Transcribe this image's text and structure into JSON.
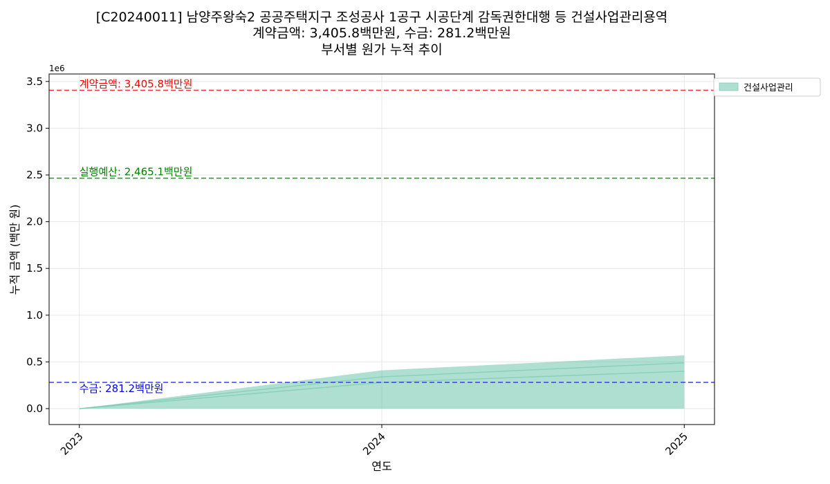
{
  "chart_data": {
    "type": "area",
    "title_lines": [
      "[C20240011] 남양주왕숙2 공공주택지구 조성공사 1공구 시공단계 감독권한대행 등 건설사업관리용역",
      "계약금액: 3,405.8백만원, 수금: 281.2백만원",
      "부서별 원가 누적 추이"
    ],
    "xlabel": "연도",
    "ylabel": "누적 금액 (백만 원)",
    "y_offset_label": "1e6",
    "x": [
      2023,
      2024,
      2025
    ],
    "x_tick_labels": [
      "2023",
      "2024",
      "2025"
    ],
    "xlim": [
      2022.9,
      2025.1
    ],
    "ylim": [
      -170000,
      3580000
    ],
    "y_ticks": [
      0,
      500000,
      1000000,
      1500000,
      2000000,
      2500000,
      3000000,
      3500000
    ],
    "y_tick_labels": [
      "0.0",
      "0.5",
      "1.0",
      "1.5",
      "2.0",
      "2.5",
      "3.0",
      "3.5"
    ],
    "grid": true,
    "legend_position": "outside-top-right",
    "series": [
      {
        "name": "건설사업관리",
        "color": "#66c2a5",
        "lower": [
          0,
          280000,
          400000
        ],
        "mid": [
          0,
          340000,
          490000
        ],
        "upper": [
          0,
          410000,
          570000
        ]
      }
    ],
    "reference_lines": [
      {
        "label": "계약금액: 3,405.8백만원",
        "value": 3405800,
        "color": "#ff0000",
        "line_color": "#f03a3a"
      },
      {
        "label": "실행예산: 2,465.1백만원",
        "value": 2465100,
        "color": "#008000",
        "line_color": "#2ca02c"
      },
      {
        "label": "수금: 281.2백만원",
        "value": 281200,
        "color": "#0000ff",
        "line_color": "#3a3aff"
      }
    ]
  }
}
